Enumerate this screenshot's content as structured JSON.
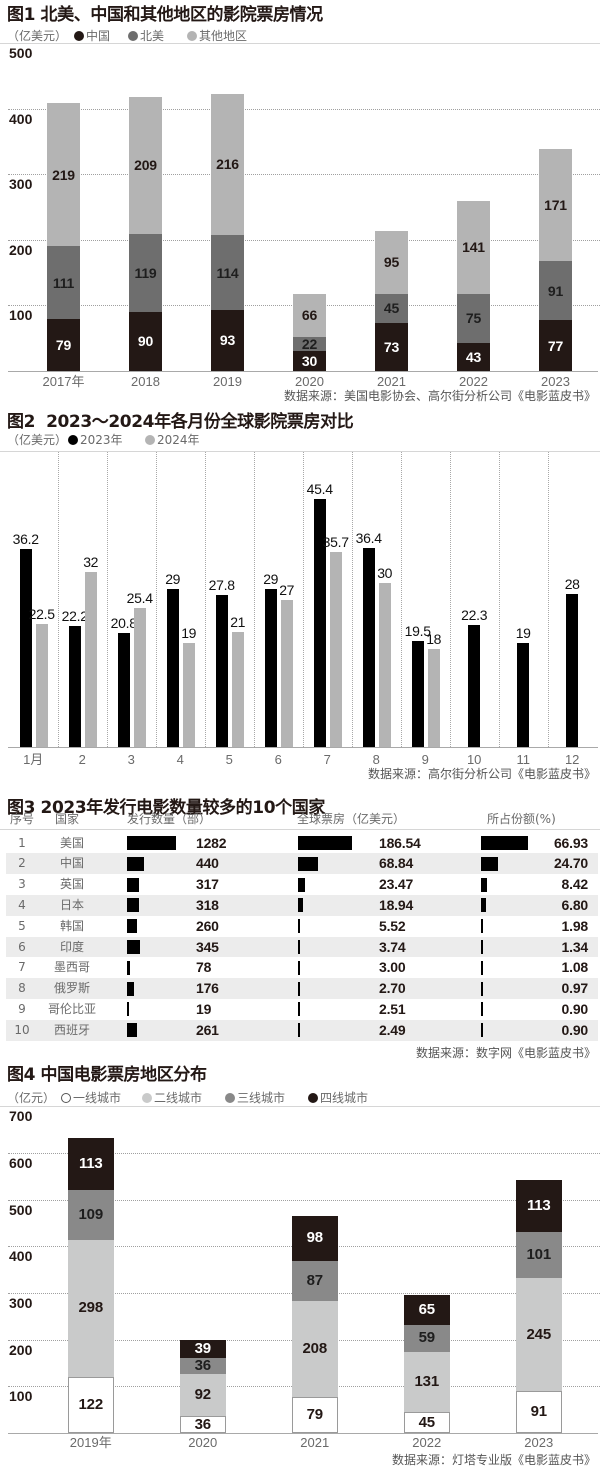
{
  "chart_data": [
    {
      "type": "bar",
      "stacked": true,
      "title": "图1 北美、中国和其他地区的影院票房情况",
      "unit_label": "（亿美元）",
      "xlabel": "",
      "ylabel": "亿美元",
      "categories": [
        "2017年",
        "2018",
        "2019",
        "2020",
        "2021",
        "2022",
        "2023"
      ],
      "series": [
        {
          "name": "中国",
          "color": "#231815",
          "label_color": "#ffffff",
          "values": [
            79,
            90,
            93,
            30,
            73,
            43,
            77
          ]
        },
        {
          "name": "北美",
          "color": "#6e6e6e",
          "label_color": "#1e1e1e",
          "values": [
            111,
            119,
            114,
            22,
            45,
            75,
            91
          ]
        },
        {
          "name": "其他地区",
          "color": "#b4b4b4",
          "label_color": "#231815",
          "values": [
            219,
            209,
            216,
            66,
            95,
            141,
            171
          ]
        }
      ],
      "yticks": [
        100,
        200,
        300,
        400,
        500
      ],
      "ylim": [
        0,
        500
      ],
      "grid": true,
      "legend_position": "top-left",
      "source": "数据来源：美国电影协会、高尔街分析公司《电影蓝皮书》"
    },
    {
      "type": "bar",
      "stacked": false,
      "title": "图2  2023～2024年各月份全球影院票房对比",
      "unit_label": "（亿美元）",
      "xlabel": "",
      "ylabel": "亿美元",
      "categories": [
        "1月",
        "2",
        "3",
        "4",
        "5",
        "6",
        "7",
        "8",
        "9",
        "10",
        "11",
        "12"
      ],
      "series": [
        {
          "name": "2023年",
          "color": "#000000",
          "values": [
            36.2,
            22.2,
            20.8,
            29,
            27.8,
            29,
            45.4,
            36.4,
            19.5,
            22.3,
            19,
            28
          ]
        },
        {
          "name": "2024年",
          "color": "#b4b4b4",
          "values": [
            22.5,
            32,
            25.4,
            19,
            21,
            27,
            35.7,
            30,
            18,
            null,
            null,
            null
          ]
        }
      ],
      "grid": false,
      "legend_position": "top-left",
      "source": "数据来源：高尔街分析公司《电影蓝皮书》"
    },
    {
      "type": "table",
      "title": "图3 2023年发行电影数量较多的10个国家",
      "columns": [
        "序号",
        "国家",
        "发行数量（部）",
        "全球票房（亿美元）",
        "所占份额(%)"
      ],
      "rows": [
        [
          "1",
          "美国",
          "1282",
          "186.54",
          "66.93"
        ],
        [
          "2",
          "中国",
          "440",
          "68.84",
          "24.70"
        ],
        [
          "3",
          "英国",
          "317",
          "23.47",
          "8.42"
        ],
        [
          "4",
          "日本",
          "318",
          "18.94",
          "6.80"
        ],
        [
          "5",
          "韩国",
          "260",
          "5.52",
          "1.98"
        ],
        [
          "6",
          "印度",
          "345",
          "3.74",
          "1.34"
        ],
        [
          "7",
          "墨西哥",
          "78",
          "3.00",
          "1.08"
        ],
        [
          "8",
          "俄罗斯",
          "176",
          "2.70",
          "0.97"
        ],
        [
          "9",
          "哥伦比亚",
          "19",
          "2.51",
          "0.90"
        ],
        [
          "10",
          "西班牙",
          "261",
          "2.49",
          "0.90"
        ]
      ],
      "source": "数据来源：数字网《电影蓝皮书》"
    },
    {
      "type": "bar",
      "stacked": true,
      "title": "图4 中国电影票房地区分布",
      "unit_label": "（亿元）",
      "xlabel": "",
      "ylabel": "亿元",
      "categories": [
        "2019年",
        "2020",
        "2021",
        "2022",
        "2023"
      ],
      "series": [
        {
          "name": "一线城市",
          "color": "#ffffff",
          "border": "#9a9a9a",
          "label_color": "#231815",
          "values": [
            122,
            36,
            79,
            45,
            91
          ]
        },
        {
          "name": "二线城市",
          "color": "#c9caca",
          "label_color": "#231815",
          "values": [
            298,
            92,
            208,
            131,
            245
          ]
        },
        {
          "name": "三线城市",
          "color": "#898989",
          "label_color": "#1e1e1e",
          "values": [
            109,
            36,
            87,
            59,
            101
          ]
        },
        {
          "name": "四线城市",
          "color": "#231815",
          "label_color": "#ffffff",
          "values": [
            113,
            39,
            98,
            65,
            113
          ]
        }
      ],
      "yticks": [
        100,
        200,
        300,
        400,
        500,
        600,
        700
      ],
      "ylim": [
        0,
        700
      ],
      "grid": true,
      "legend_position": "top-left",
      "source": "数据来源：灯塔专业版《电影蓝皮书》"
    }
  ]
}
